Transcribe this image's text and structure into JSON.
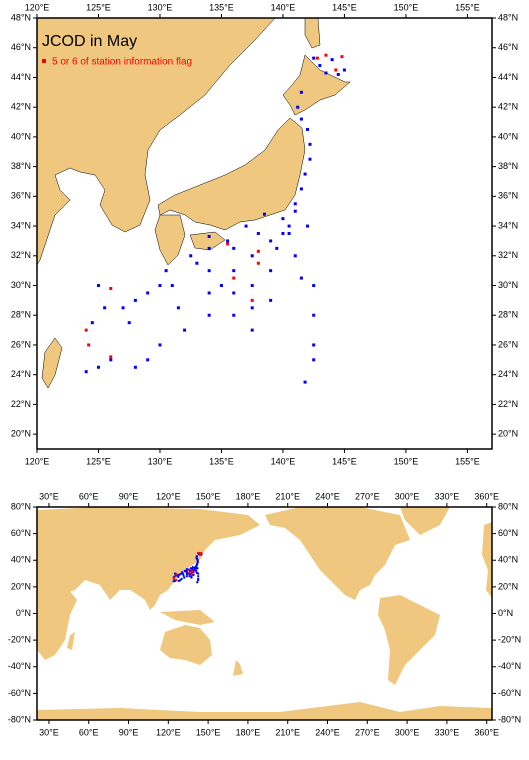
{
  "title": "JCOD in May",
  "legend": "5 or 6 of station information flag",
  "map_top": {
    "xlim": [
      120,
      157
    ],
    "ylim": [
      19,
      48
    ],
    "xticks": [
      {
        "value": 120,
        "label": "120°E"
      },
      {
        "value": 125,
        "label": "125°E"
      },
      {
        "value": 130,
        "label": "130°E"
      },
      {
        "value": 135,
        "label": "135°E"
      },
      {
        "value": 140,
        "label": "140°E"
      },
      {
        "value": 145,
        "label": "145°E"
      },
      {
        "value": 150,
        "label": "150°E"
      },
      {
        "value": 155,
        "label": "155°E"
      }
    ],
    "yticks": [
      {
        "value": 20,
        "label": "20°N"
      },
      {
        "value": 22,
        "label": "22°N"
      },
      {
        "value": 24,
        "label": "24°N"
      },
      {
        "value": 26,
        "label": "26°N"
      },
      {
        "value": 28,
        "label": "28°N"
      },
      {
        "value": 30,
        "label": "30°N"
      },
      {
        "value": 32,
        "label": "32°N"
      },
      {
        "value": 34,
        "label": "34°N"
      },
      {
        "value": 36,
        "label": "36°N"
      },
      {
        "value": 38,
        "label": "38°N"
      },
      {
        "value": 40,
        "label": "40°N"
      },
      {
        "value": 42,
        "label": "42°N"
      },
      {
        "value": 44,
        "label": "44°N"
      },
      {
        "value": 46,
        "label": "46°N"
      },
      {
        "value": 48,
        "label": "48°N"
      }
    ]
  },
  "map_world": {
    "xlim": [
      21,
      364
    ],
    "ylim": [
      -80,
      80
    ],
    "xticks": [
      {
        "value": 30,
        "label": "30°E"
      },
      {
        "value": 60,
        "label": "60°E"
      },
      {
        "value": 90,
        "label": "90°E"
      },
      {
        "value": 120,
        "label": "120°E"
      },
      {
        "value": 150,
        "label": "150°E"
      },
      {
        "value": 180,
        "label": "180°E"
      },
      {
        "value": 210,
        "label": "210°E"
      },
      {
        "value": 240,
        "label": "240°E"
      },
      {
        "value": 270,
        "label": "270°E"
      },
      {
        "value": 300,
        "label": "300°E"
      },
      {
        "value": 330,
        "label": "330°E"
      },
      {
        "value": 360,
        "label": "360°E"
      }
    ],
    "yticks": [
      {
        "value": 80,
        "label": "80°N"
      },
      {
        "value": 60,
        "label": "60°N"
      },
      {
        "value": 40,
        "label": "40°N"
      },
      {
        "value": 20,
        "label": "20°N"
      },
      {
        "value": 0,
        "label": "0°N"
      },
      {
        "value": -20,
        "label": "-20°N"
      },
      {
        "value": -40,
        "label": "-40°N"
      },
      {
        "value": -60,
        "label": "-60°N"
      },
      {
        "value": -80,
        "label": "-80°N"
      }
    ]
  },
  "stations": {
    "color": "#0000ff",
    "lon": [
      142.5,
      143.0,
      143.5,
      144.5,
      145.0,
      144.0,
      141.5,
      141.2,
      141.5,
      142.0,
      142.2,
      142.2,
      141.8,
      141.5,
      141.0,
      125.0,
      126.0,
      124.5,
      125.5,
      125.0,
      127.0,
      128.0,
      129.0,
      130.0,
      130.5,
      131.0,
      131.5,
      132.0,
      130.0,
      129.0,
      128.0,
      124.0,
      134.0,
      134.0,
      134.0,
      134.0,
      134.0,
      136.0,
      136.0,
      136.0,
      136.0,
      137.5,
      137.5,
      137.5,
      137.5,
      139.0,
      139.0,
      139.0,
      140.0,
      140.5,
      141.0,
      141.5,
      142.0,
      142.5,
      142.5,
      142.5,
      142.5,
      141.8,
      133.0,
      135.0,
      138.0,
      140.0,
      139.5,
      132.5,
      135.5,
      137.0,
      138.5,
      140.5,
      141.0,
      127.5
    ],
    "lat": [
      45.3,
      44.8,
      44.3,
      44.2,
      44.5,
      45.2,
      43.0,
      42.0,
      41.2,
      40.5,
      39.5,
      38.5,
      37.5,
      36.5,
      35.5,
      24.5,
      25.0,
      27.5,
      28.5,
      30.0,
      28.5,
      29.0,
      29.5,
      30.0,
      31.0,
      30.0,
      28.5,
      27.0,
      26.0,
      25.0,
      24.5,
      24.2,
      28.0,
      29.5,
      31.0,
      32.5,
      33.3,
      28.0,
      29.5,
      31.0,
      32.5,
      27.0,
      28.5,
      30.0,
      32.0,
      29.0,
      31.0,
      33.0,
      34.5,
      33.5,
      32.0,
      30.5,
      34.0,
      30.0,
      28.0,
      26.0,
      25.0,
      23.5,
      31.5,
      30.0,
      33.5,
      33.5,
      32.5,
      32.0,
      33.0,
      34.0,
      34.8,
      34.0,
      35.0,
      27.5
    ]
  },
  "flagged": {
    "color": "#ff0000",
    "lon": [
      142.8,
      143.5,
      144.8,
      144.3,
      124.0,
      124.2,
      126.0,
      126.0,
      138.0,
      138.0,
      137.5,
      135.5,
      136.0
    ],
    "lat": [
      45.3,
      45.5,
      45.4,
      44.5,
      27.0,
      26.0,
      25.2,
      29.8,
      32.3,
      31.5,
      29.0,
      32.8,
      30.5
    ]
  }
}
